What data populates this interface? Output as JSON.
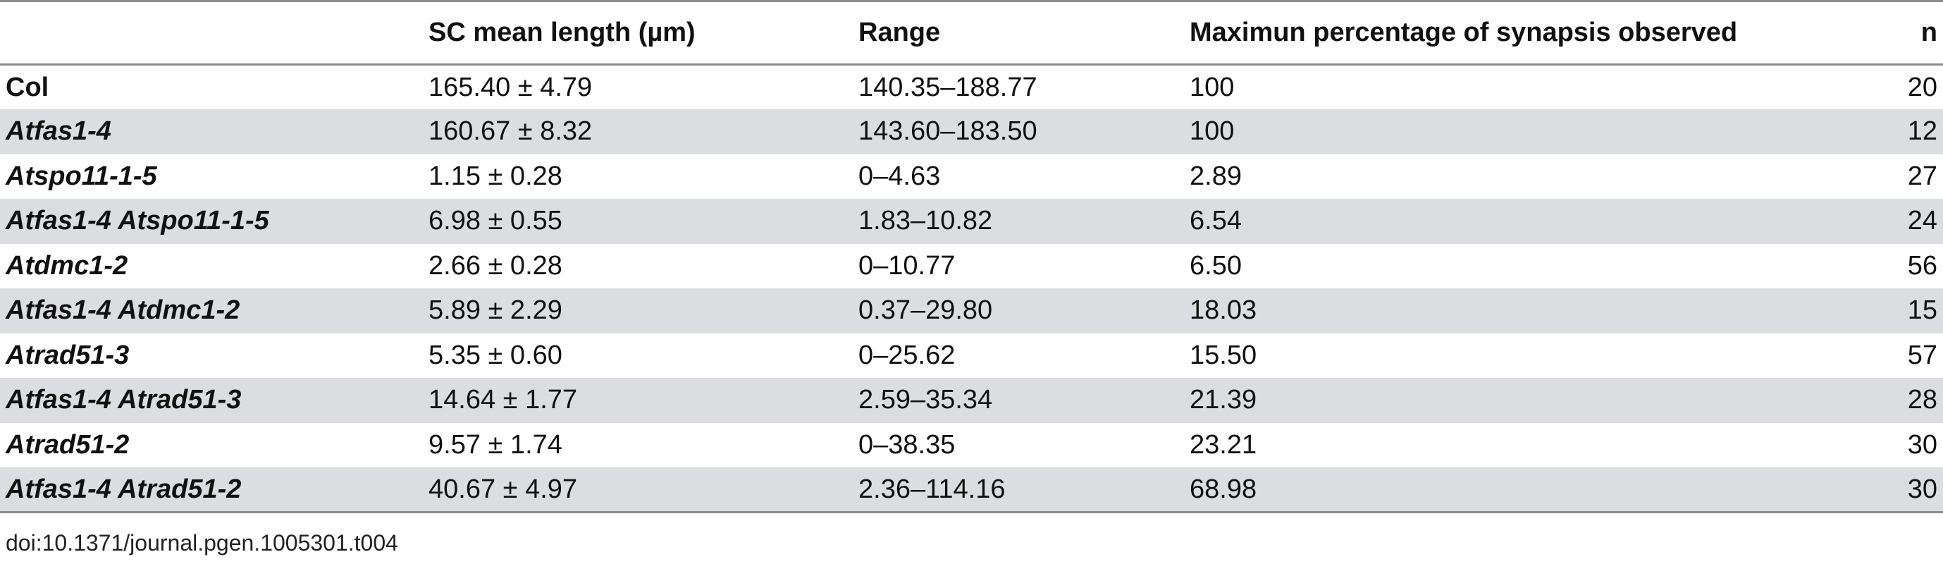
{
  "table": {
    "headers": {
      "genotype": "",
      "sc_mean_length": "SC mean length (µm)",
      "range": "Range",
      "max_percentage": "Maximun percentage of synapsis observed",
      "n": "n"
    },
    "rows": [
      {
        "genotype": "Col",
        "sc_mean_length": "165.40 ± 4.79",
        "range": "140.35–188.77",
        "max_percentage": "100",
        "n": "20"
      },
      {
        "genotype": "Atfas1-4",
        "sc_mean_length": "160.67 ± 8.32",
        "range": "143.60–183.50",
        "max_percentage": "100",
        "n": "12"
      },
      {
        "genotype": "Atspo11-1-5",
        "sc_mean_length": "1.15 ± 0.28",
        "range": "0–4.63",
        "max_percentage": "2.89",
        "n": "27"
      },
      {
        "genotype": "Atfas1-4 Atspo11-1-5",
        "sc_mean_length": "6.98 ± 0.55",
        "range": "1.83–10.82",
        "max_percentage": "6.54",
        "n": "24"
      },
      {
        "genotype": "Atdmc1-2",
        "sc_mean_length": "2.66 ± 0.28",
        "range": "0–10.77",
        "max_percentage": "6.50",
        "n": "56"
      },
      {
        "genotype": "Atfas1-4 Atdmc1-2",
        "sc_mean_length": "5.89 ± 2.29",
        "range": "0.37–29.80",
        "max_percentage": "18.03",
        "n": "15"
      },
      {
        "genotype": "Atrad51-3",
        "sc_mean_length": "5.35 ± 0.60",
        "range": "0–25.62",
        "max_percentage": "15.50",
        "n": "57"
      },
      {
        "genotype": "Atfas1-4 Atrad51-3",
        "sc_mean_length": "14.64 ± 1.77",
        "range": "2.59–35.34",
        "max_percentage": "21.39",
        "n": "28"
      },
      {
        "genotype": "Atrad51-2",
        "sc_mean_length": "9.57 ± 1.74",
        "range": "0–38.35",
        "max_percentage": "23.21",
        "n": "30"
      },
      {
        "genotype": "Atfas1-4 Atrad51-2",
        "sc_mean_length": "40.67 ± 4.97",
        "range": "2.36–114.16",
        "max_percentage": "68.98",
        "n": "30"
      }
    ]
  },
  "footnote": "doi:10.1371/journal.pgen.1005301.t004",
  "colors": {
    "stripe": "#dcdde0",
    "rule": "#8c8c8c",
    "text": "#111111"
  }
}
